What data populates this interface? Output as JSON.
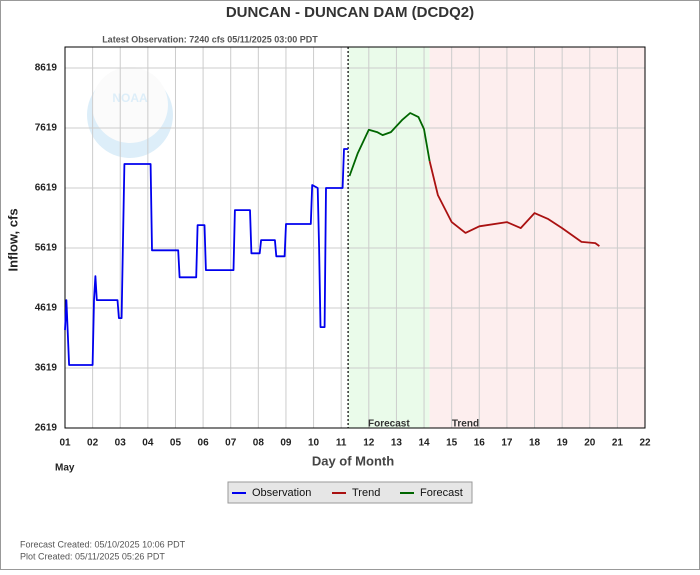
{
  "chart_data": {
    "type": "line",
    "title": "DUNCAN - DUNCAN DAM  (DCDQ2)",
    "subtitle": "Latest Observation: 7240 cfs 05/11/2025 03:00 PDT",
    "y_label": "Inflow, cfs",
    "x_label": "Day of Month",
    "x_month": "May",
    "xlim": [
      1,
      22
    ],
    "ylim": [
      2619,
      8969
    ],
    "xticks": [
      {
        "value": 1,
        "label": "01"
      },
      {
        "value": 2,
        "label": "02"
      },
      {
        "value": 3,
        "label": "03"
      },
      {
        "value": 4,
        "label": "04"
      },
      {
        "value": 5,
        "label": "05"
      },
      {
        "value": 6,
        "label": "06"
      },
      {
        "value": 7,
        "label": "07"
      },
      {
        "value": 8,
        "label": "08"
      },
      {
        "value": 9,
        "label": "09"
      },
      10,
      11,
      12,
      13,
      14,
      15,
      16,
      17,
      18,
      19,
      20,
      21,
      22
    ],
    "yticks": [
      2619,
      3619,
      4619,
      5619,
      6619,
      7619,
      8619
    ],
    "grid": true,
    "regions": [
      {
        "label": "Forecast",
        "start": 11.25,
        "end": 14.2,
        "color": "#eafbea"
      },
      {
        "label": "Trend",
        "start": 14.2,
        "end": 22,
        "color": "#fdeeee"
      }
    ],
    "series": [
      {
        "name": "Observation",
        "color": "#0000ee",
        "x": [
          1.0,
          1.05,
          1.15,
          2.0,
          2.05,
          2.1,
          2.15,
          2.9,
          2.95,
          3.05,
          3.1,
          3.15,
          4.1,
          4.15,
          5.1,
          5.15,
          5.75,
          5.8,
          6.05,
          6.1,
          7.1,
          7.15,
          7.7,
          7.75,
          8.05,
          8.1,
          8.6,
          8.65,
          8.95,
          9.0,
          9.9,
          9.95,
          10.15,
          10.2,
          10.25,
          10.4,
          10.45,
          11.05,
          11.1,
          11.25
        ],
        "values": [
          4250,
          4750,
          3669,
          3669,
          4750,
          5150,
          4750,
          4750,
          4450,
          4450,
          5750,
          7019,
          7019,
          5580,
          5580,
          5130,
          5130,
          6000,
          6000,
          5250,
          5250,
          6250,
          6250,
          5530,
          5530,
          5750,
          5750,
          5480,
          5480,
          6019,
          6019,
          6669,
          6619,
          5619,
          4300,
          4300,
          6619,
          6619,
          7269,
          7269
        ]
      },
      {
        "name": "Trend",
        "color": "#aa1111",
        "x": [
          14.2,
          14.5,
          15.0,
          15.5,
          16.0,
          17.0,
          17.5,
          18.0,
          18.5,
          19.0,
          19.7,
          20.2,
          20.35
        ],
        "values": [
          7069,
          6500,
          6050,
          5870,
          5980,
          6050,
          5950,
          6200,
          6100,
          5950,
          5720,
          5700,
          5650
        ]
      },
      {
        "name": "Forecast",
        "color": "#006600",
        "x": [
          11.3,
          11.6,
          12.0,
          12.3,
          12.5,
          12.8,
          13.2,
          13.5,
          13.8,
          14.0,
          14.2
        ],
        "values": [
          6819,
          7200,
          7589,
          7550,
          7500,
          7550,
          7750,
          7869,
          7800,
          7600,
          7069
        ]
      }
    ],
    "footer": [
      "Forecast Created: 05/10/2025 10:06 PDT",
      "Plot Created: 05/11/2025 05:26 PDT"
    ]
  }
}
